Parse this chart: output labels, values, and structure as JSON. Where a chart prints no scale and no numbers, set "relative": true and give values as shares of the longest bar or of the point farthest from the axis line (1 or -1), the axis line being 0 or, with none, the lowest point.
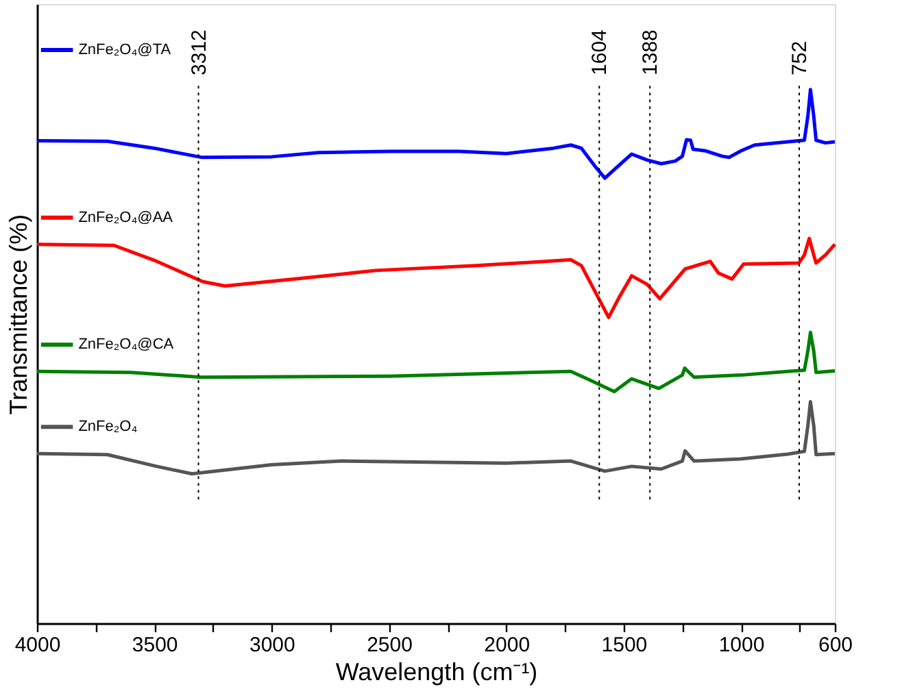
{
  "chart_data": {
    "type": "line",
    "relative": true,
    "xlabel": "Wavelength (cm⁻¹)",
    "ylabel": "Transmittance (%)",
    "xlim": [
      4000,
      600
    ],
    "xticks": [
      4000,
      {
        "value": 3750,
        "label": null
      },
      3500,
      {
        "value": 3250,
        "label": null
      },
      3000,
      {
        "value": 2750,
        "label": null
      },
      2500,
      {
        "value": 2250,
        "label": null
      },
      2000,
      {
        "value": 1750,
        "label": null
      },
      1500,
      {
        "value": 1250,
        "label": null
      },
      1000,
      {
        "value": 750,
        "label": null
      },
      600
    ],
    "tick_labels": "x",
    "grid": false,
    "legend": "left",
    "line_style": "solid",
    "marker": "none",
    "ref_lines": [
      {
        "axis": "x",
        "value": 3312,
        "label": "3312",
        "line_style": "dotted"
      },
      {
        "axis": "x",
        "value": 1604,
        "label": "1604",
        "line_style": "dotted"
      },
      {
        "axis": "x",
        "value": 1388,
        "label": "1388",
        "line_style": "dotted"
      },
      {
        "axis": "x",
        "value": 752,
        "label": "752",
        "line_style": "dotted"
      }
    ],
    "series": [
      {
        "name": "ZnFe₂O₄@TA",
        "color": "#0000ff",
        "x": [
          4000,
          3700,
          3500,
          3300,
          3000,
          2800,
          2500,
          2200,
          2000,
          1800,
          1725,
          1680,
          1620,
          1580,
          1540,
          1466,
          1400,
          1340,
          1280,
          1250,
          1232,
          1215,
          1204,
          1150,
          1080,
          1050,
          1000,
          942,
          800,
          730,
          715,
          704,
          690,
          680,
          640,
          600
        ],
        "values": [
          0.904,
          0.903,
          0.89,
          0.873,
          0.874,
          0.882,
          0.884,
          0.884,
          0.88,
          0.89,
          0.896,
          0.89,
          0.855,
          0.834,
          0.85,
          0.879,
          0.868,
          0.861,
          0.866,
          0.875,
          0.906,
          0.905,
          0.888,
          0.885,
          0.875,
          0.873,
          0.885,
          0.896,
          0.902,
          0.905,
          0.95,
          1.0,
          0.95,
          0.905,
          0.9,
          0.902
        ]
      },
      {
        "name": "ZnFe₂O₄@AA",
        "color": "#ff0000",
        "x": [
          4000,
          3672,
          3500,
          3293,
          3199,
          2900,
          2557,
          2129,
          1725,
          1680,
          1564,
          1520,
          1466,
          1400,
          1346,
          1238,
          1131,
          1096,
          1038,
          989,
          753,
          730,
          709,
          690,
          680,
          640,
          600
        ],
        "values": [
          0.71,
          0.708,
          0.68,
          0.64,
          0.632,
          0.645,
          0.661,
          0.67,
          0.681,
          0.67,
          0.573,
          0.61,
          0.651,
          0.635,
          0.608,
          0.664,
          0.678,
          0.656,
          0.645,
          0.673,
          0.675,
          0.69,
          0.721,
          0.69,
          0.675,
          0.69,
          0.71
        ]
      },
      {
        "name": "ZnFe₂O₄@CA",
        "color": "#008000",
        "x": [
          4000,
          3600,
          3300,
          2500,
          1725,
          1640,
          1540,
          1466,
          1350,
          1250,
          1240,
          1200,
          1000,
          800,
          730,
          715,
          704,
          690,
          680,
          600
        ],
        "values": [
          0.472,
          0.47,
          0.461,
          0.463,
          0.472,
          0.455,
          0.434,
          0.458,
          0.44,
          0.465,
          0.478,
          0.461,
          0.465,
          0.472,
          0.474,
          0.51,
          0.545,
          0.51,
          0.47,
          0.473
        ]
      },
      {
        "name": "ZnFe₂O₄",
        "color": "#555555",
        "x": [
          4000,
          3700,
          3500,
          3340,
          3000,
          2700,
          2000,
          1725,
          1580,
          1466,
          1340,
          1250,
          1238,
          1200,
          1000,
          800,
          730,
          715,
          704,
          690,
          680,
          600
        ],
        "values": [
          0.318,
          0.316,
          0.295,
          0.28,
          0.297,
          0.304,
          0.3,
          0.304,
          0.285,
          0.294,
          0.289,
          0.304,
          0.323,
          0.304,
          0.308,
          0.317,
          0.322,
          0.37,
          0.415,
          0.37,
          0.316,
          0.318
        ]
      }
    ]
  }
}
